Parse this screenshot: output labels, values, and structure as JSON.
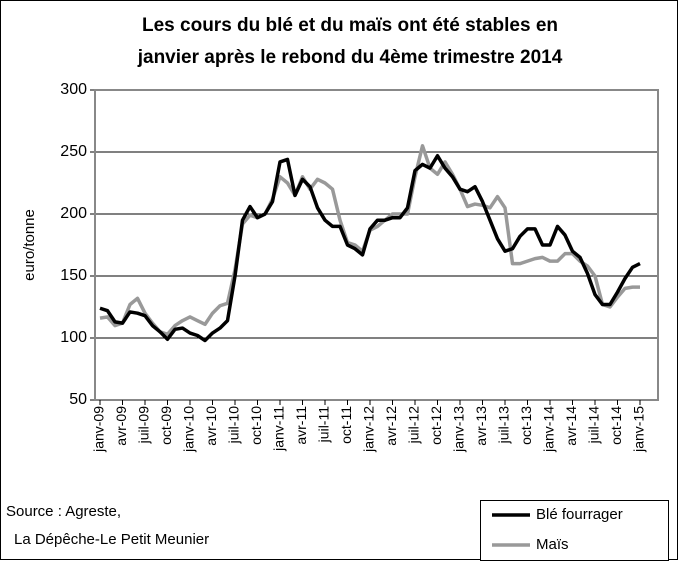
{
  "chart_data": {
    "type": "line",
    "title": [
      "Les cours du blé et du maïs ont été stables en",
      "janvier après le rebond du 4ème trimestre 2014"
    ],
    "ylabel": "euro/tonne",
    "source": [
      "Source : Agreste,",
      "La Dépêche-Le Petit Meunier"
    ],
    "categories": [
      "janv-09",
      null,
      null,
      "avr-09",
      null,
      null,
      "juil-09",
      null,
      null,
      "oct-09",
      null,
      null,
      "janv-10",
      null,
      null,
      "avr-10",
      null,
      null,
      "juil-10",
      null,
      null,
      "oct-10",
      null,
      null,
      "janv-11",
      null,
      null,
      "avr-11",
      null,
      null,
      "juil-11",
      null,
      null,
      "oct-11",
      null,
      null,
      "janv-12",
      null,
      null,
      "avr-12",
      null,
      null,
      "juil-12",
      null,
      null,
      "oct-12",
      null,
      null,
      "janv-13",
      null,
      null,
      "avr-13",
      null,
      null,
      "juil-13",
      null,
      null,
      "oct-13",
      null,
      null,
      "janv-14",
      null,
      null,
      "avr-14",
      null,
      null,
      "juil-14",
      null,
      null,
      "oct-14",
      null,
      null,
      "janv-15"
    ],
    "series": [
      {
        "name": "Blé fourrager",
        "color": "#000000",
        "values": [
          124,
          122,
          113,
          112,
          121,
          120,
          118,
          110,
          105,
          99,
          107,
          108,
          104,
          102,
          98,
          104,
          108,
          114,
          150,
          195,
          206,
          197,
          200,
          210,
          242,
          244,
          215,
          228,
          222,
          205,
          195,
          190,
          190,
          175,
          172,
          167,
          188,
          195,
          195,
          197,
          197,
          205,
          235,
          240,
          237,
          247,
          237,
          230,
          220,
          218,
          222,
          210,
          195,
          180,
          170,
          172,
          182,
          188,
          188,
          175,
          175,
          190,
          183,
          170,
          165,
          152,
          135,
          127,
          127,
          137,
          148,
          157,
          160
        ]
      },
      {
        "name": "Maïs",
        "color": "#999999",
        "values": [
          116,
          117,
          110,
          112,
          127,
          132,
          120,
          112,
          105,
          103,
          110,
          114,
          117,
          114,
          111,
          120,
          126,
          128,
          155,
          192,
          199,
          197,
          200,
          212,
          230,
          225,
          215,
          230,
          220,
          228,
          225,
          220,
          195,
          177,
          175,
          170,
          187,
          190,
          195,
          200,
          200,
          200,
          230,
          255,
          237,
          232,
          242,
          232,
          220,
          206,
          208,
          207,
          205,
          214,
          205,
          160,
          160,
          162,
          164,
          165,
          162,
          162,
          168,
          168,
          162,
          158,
          150,
          127,
          125,
          133,
          140,
          141,
          141
        ]
      }
    ],
    "ylim": [
      50,
      300
    ],
    "yticks": [
      50,
      100,
      150,
      200,
      250,
      300
    ],
    "grid": true
  }
}
